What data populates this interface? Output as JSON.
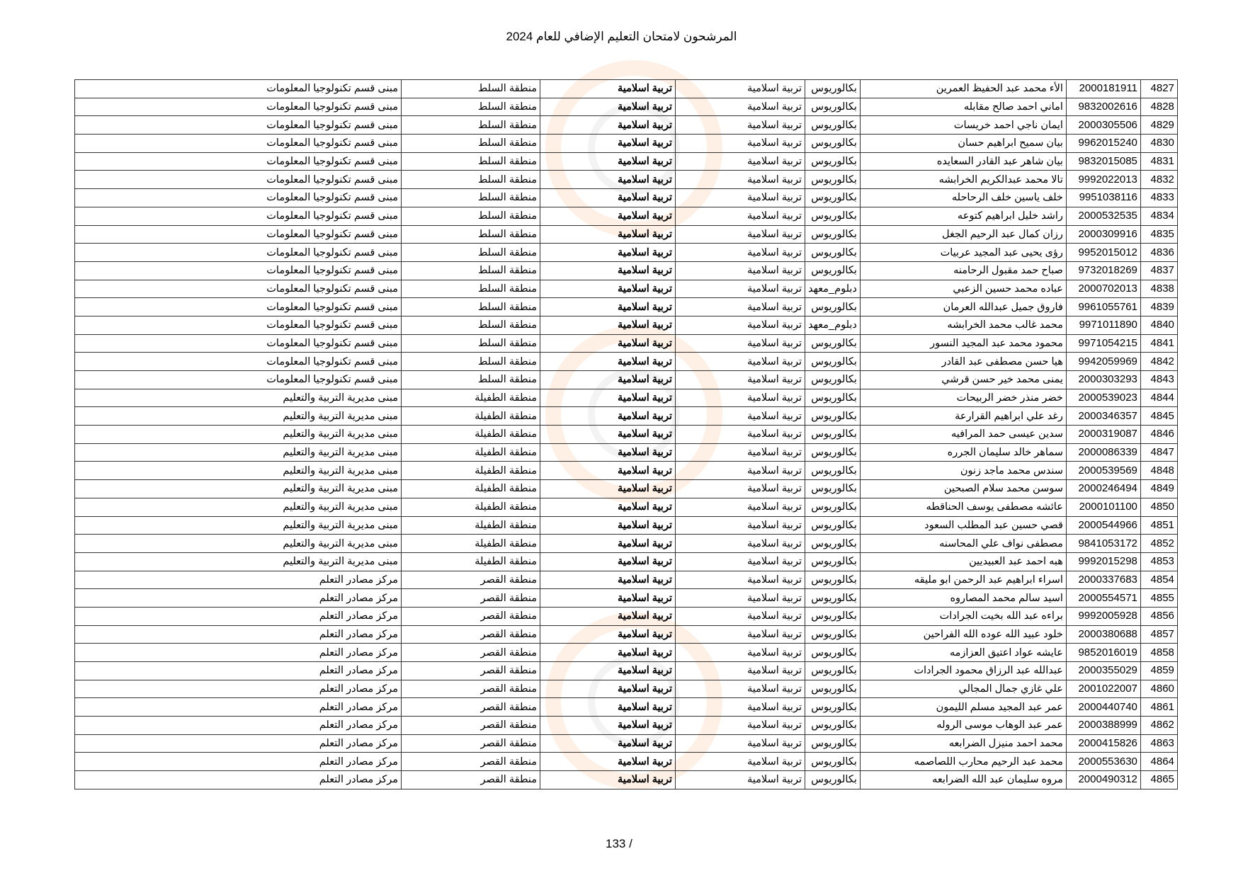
{
  "header": {
    "title": "المرشحون لامتحان التعليم الإضافي للعام 2024"
  },
  "footer": {
    "page_number": "133 /"
  },
  "watermark": {
    "colors": {
      "ring": "#faaa6e",
      "logo": "#a0a0a0"
    }
  },
  "table": {
    "rows": [
      {
        "seq": "4827",
        "id": "2000181911",
        "name": "الأء محمد عبد الحفيظ العمرين",
        "degree": "بكالوريوس",
        "specialization": "تربية اسلامية",
        "subject": "تربية اسلامية",
        "region": "منطقة السلط",
        "center": "مبنى قسم تكنولوجيا المعلومات"
      },
      {
        "seq": "4828",
        "id": "9832002616",
        "name": "اماني احمد صالح مقابله",
        "degree": "بكالوريوس",
        "specialization": "تربية اسلامية",
        "subject": "تربية اسلامية",
        "region": "منطقة السلط",
        "center": "مبنى قسم تكنولوجيا المعلومات"
      },
      {
        "seq": "4829",
        "id": "2000305506",
        "name": "ايمان ناجي احمد خريسات",
        "degree": "بكالوريوس",
        "specialization": "تربية اسلامية",
        "subject": "تربية اسلامية",
        "region": "منطقة السلط",
        "center": "مبنى قسم تكنولوجيا المعلومات"
      },
      {
        "seq": "4830",
        "id": "9962015240",
        "name": "بيان سميح ابراهيم حسان",
        "degree": "بكالوريوس",
        "specialization": "تربية اسلامية",
        "subject": "تربية اسلامية",
        "region": "منطقة السلط",
        "center": "مبنى قسم تكنولوجيا المعلومات"
      },
      {
        "seq": "4831",
        "id": "9832015085",
        "name": "بيان شاهر عبد القادر السعايده",
        "degree": "بكالوريوس",
        "specialization": "تربية اسلامية",
        "subject": "تربية اسلامية",
        "region": "منطقة السلط",
        "center": "مبنى قسم تكنولوجيا المعلومات"
      },
      {
        "seq": "4832",
        "id": "9992022013",
        "name": "تالا محمد عبدالكريم الخرابشه",
        "degree": "بكالوريوس",
        "specialization": "تربية اسلامية",
        "subject": "تربية اسلامية",
        "region": "منطقة السلط",
        "center": "مبنى قسم تكنولوجيا المعلومات"
      },
      {
        "seq": "4833",
        "id": "9951038116",
        "name": "خلف ياسين خلف الرحاحله",
        "degree": "بكالوريوس",
        "specialization": "تربية اسلامية",
        "subject": "تربية اسلامية",
        "region": "منطقة السلط",
        "center": "مبنى قسم تكنولوجيا المعلومات"
      },
      {
        "seq": "4834",
        "id": "2000532535",
        "name": "راشد خليل ابراهيم كتوعه",
        "degree": "بكالوريوس",
        "specialization": "تربية اسلامية",
        "subject": "تربية اسلامية",
        "region": "منطقة السلط",
        "center": "مبنى قسم تكنولوجيا المعلومات"
      },
      {
        "seq": "4835",
        "id": "2000309916",
        "name": "رزان كمال عبد الرحيم الجغل",
        "degree": "بكالوريوس",
        "specialization": "تربية اسلامية",
        "subject": "تربية اسلامية",
        "region": "منطقة السلط",
        "center": "مبنى قسم تكنولوجيا المعلومات"
      },
      {
        "seq": "4836",
        "id": "9952015012",
        "name": "رؤى يحيى عبد المجيد عربيات",
        "degree": "بكالوريوس",
        "specialization": "تربية اسلامية",
        "subject": "تربية اسلامية",
        "region": "منطقة السلط",
        "center": "مبنى قسم تكنولوجيا المعلومات"
      },
      {
        "seq": "4837",
        "id": "9732018269",
        "name": "صباح حمد مقبول الرحامنه",
        "degree": "بكالوريوس",
        "specialization": "تربية اسلامية",
        "subject": "تربية اسلامية",
        "region": "منطقة السلط",
        "center": "مبنى قسم تكنولوجيا المعلومات"
      },
      {
        "seq": "4838",
        "id": "2000702013",
        "name": "عباده محمد حسين الزعبي",
        "degree": "دبلوم_معهد",
        "specialization": "تربية اسلامية",
        "subject": "تربية اسلامية",
        "region": "منطقة السلط",
        "center": "مبنى قسم تكنولوجيا المعلومات"
      },
      {
        "seq": "4839",
        "id": "9961055761",
        "name": "فاروق جميل عبدالله العرمان",
        "degree": "بكالوريوس",
        "specialization": "تربية اسلامية",
        "subject": "تربية اسلامية",
        "region": "منطقة السلط",
        "center": "مبنى قسم تكنولوجيا المعلومات"
      },
      {
        "seq": "4840",
        "id": "9971011890",
        "name": "محمد غالب محمد الخرابشه",
        "degree": "دبلوم_معهد",
        "specialization": "تربية اسلامية",
        "subject": "تربية اسلامية",
        "region": "منطقة السلط",
        "center": "مبنى قسم تكنولوجيا المعلومات"
      },
      {
        "seq": "4841",
        "id": "9971054215",
        "name": "محمود محمد عبد المجيد النسور",
        "degree": "بكالوريوس",
        "specialization": "تربية اسلامية",
        "subject": "تربية اسلامية",
        "region": "منطقة السلط",
        "center": "مبنى قسم تكنولوجيا المعلومات"
      },
      {
        "seq": "4842",
        "id": "9942059969",
        "name": "هيا حسن مصطفى عبد القادر",
        "degree": "بكالوريوس",
        "specialization": "تربية اسلامية",
        "subject": "تربية اسلامية",
        "region": "منطقة السلط",
        "center": "مبنى قسم تكنولوجيا المعلومات"
      },
      {
        "seq": "4843",
        "id": "2000303293",
        "name": "يمنى محمد خير حسن قرشي",
        "degree": "بكالوريوس",
        "specialization": "تربية اسلامية",
        "subject": "تربية اسلامية",
        "region": "منطقة السلط",
        "center": "مبنى قسم تكنولوجيا المعلومات"
      },
      {
        "seq": "4844",
        "id": "2000539023",
        "name": "خضر منذر خضر الربيحات",
        "degree": "بكالوريوس",
        "specialization": "تربية اسلامية",
        "subject": "تربية اسلامية",
        "region": "منطقة الطفيلة",
        "center": "مبنى مديرية التربية والتعليم"
      },
      {
        "seq": "4845",
        "id": "2000346357",
        "name": "رغد علي ابراهيم القرارعة",
        "degree": "بكالوريوس",
        "specialization": "تربية اسلامية",
        "subject": "تربية اسلامية",
        "region": "منطقة الطفيلة",
        "center": "مبنى مديرية التربية والتعليم"
      },
      {
        "seq": "4846",
        "id": "2000319087",
        "name": "سدين عيسى حمد المرافيه",
        "degree": "بكالوريوس",
        "specialization": "تربية اسلامية",
        "subject": "تربية اسلامية",
        "region": "منطقة الطفيلة",
        "center": "مبنى مديرية التربية والتعليم"
      },
      {
        "seq": "4847",
        "id": "2000086339",
        "name": "سماهر خالد سليمان الجرره",
        "degree": "بكالوريوس",
        "specialization": "تربية اسلامية",
        "subject": "تربية اسلامية",
        "region": "منطقة الطفيلة",
        "center": "مبنى مديرية التربية والتعليم"
      },
      {
        "seq": "4848",
        "id": "2000539569",
        "name": "سندس محمد ماجد زنون",
        "degree": "بكالوريوس",
        "specialization": "تربية اسلامية",
        "subject": "تربية اسلامية",
        "region": "منطقة الطفيلة",
        "center": "مبنى مديرية التربية والتعليم"
      },
      {
        "seq": "4849",
        "id": "2000246494",
        "name": "سوسن محمد سلام الصبحين",
        "degree": "بكالوريوس",
        "specialization": "تربية اسلامية",
        "subject": "تربية اسلامية",
        "region": "منطقة الطفيلة",
        "center": "مبنى مديرية التربية والتعليم"
      },
      {
        "seq": "4850",
        "id": "2000101100",
        "name": "عائشه مصطفى يوسف الحناقطه",
        "degree": "بكالوريوس",
        "specialization": "تربية اسلامية",
        "subject": "تربية اسلامية",
        "region": "منطقة الطفيلة",
        "center": "مبنى مديرية التربية والتعليم"
      },
      {
        "seq": "4851",
        "id": "2000544966",
        "name": "قصي حسين عبد المطلب السعود",
        "degree": "بكالوريوس",
        "specialization": "تربية اسلامية",
        "subject": "تربية اسلامية",
        "region": "منطقة الطفيلة",
        "center": "مبنى مديرية التربية والتعليم"
      },
      {
        "seq": "4852",
        "id": "9841053172",
        "name": "مصطفى نواف علي المحاسنه",
        "degree": "بكالوريوس",
        "specialization": "تربية اسلامية",
        "subject": "تربية اسلامية",
        "region": "منطقة الطفيلة",
        "center": "مبنى مديرية التربية والتعليم"
      },
      {
        "seq": "4853",
        "id": "9992015298",
        "name": "هبه احمد عبد العبيديين",
        "degree": "بكالوريوس",
        "specialization": "تربية اسلامية",
        "subject": "تربية اسلامية",
        "region": "منطقة الطفيلة",
        "center": "مبنى مديرية التربية والتعليم"
      },
      {
        "seq": "4854",
        "id": "2000337683",
        "name": "اسراء ابراهيم عبد الرحمن ابو مليقه",
        "degree": "بكالوريوس",
        "specialization": "تربية اسلامية",
        "subject": "تربية اسلامية",
        "region": "منطقة القصر",
        "center": "مركز مصادر التعلم"
      },
      {
        "seq": "4855",
        "id": "2000554571",
        "name": "اسيد سالم محمد المصاروه",
        "degree": "بكالوريوس",
        "specialization": "تربية اسلامية",
        "subject": "تربية اسلامية",
        "region": "منطقة القصر",
        "center": "مركز مصادر التعلم"
      },
      {
        "seq": "4856",
        "id": "9992005928",
        "name": "براءه عبد الله بخيت الجرادات",
        "degree": "بكالوريوس",
        "specialization": "تربية اسلامية",
        "subject": "تربية اسلامية",
        "region": "منطقة القصر",
        "center": "مركز مصادر التعلم"
      },
      {
        "seq": "4857",
        "id": "2000380688",
        "name": "خلود عبيد الله عوده الله الفراحين",
        "degree": "بكالوريوس",
        "specialization": "تربية اسلامية",
        "subject": "تربية اسلامية",
        "region": "منطقة القصر",
        "center": "مركز مصادر التعلم"
      },
      {
        "seq": "4858",
        "id": "9852016019",
        "name": "عايشه عواد اعتيق العزازمه",
        "degree": "بكالوريوس",
        "specialization": "تربية اسلامية",
        "subject": "تربية اسلامية",
        "region": "منطقة القصر",
        "center": "مركز مصادر التعلم"
      },
      {
        "seq": "4859",
        "id": "2000355029",
        "name": "عبدالله عبد الرزاق محمود الجرادات",
        "degree": "بكالوريوس",
        "specialization": "تربية اسلامية",
        "subject": "تربية اسلامية",
        "region": "منطقة القصر",
        "center": "مركز مصادر التعلم"
      },
      {
        "seq": "4860",
        "id": "2001022007",
        "name": "علي غازي جمال المجالي",
        "degree": "بكالوريوس",
        "specialization": "تربية اسلامية",
        "subject": "تربية اسلامية",
        "region": "منطقة القصر",
        "center": "مركز مصادر التعلم"
      },
      {
        "seq": "4861",
        "id": "2000440740",
        "name": "عمر عبد المجيد مسلم الليمون",
        "degree": "بكالوريوس",
        "specialization": "تربية اسلامية",
        "subject": "تربية اسلامية",
        "region": "منطقة القصر",
        "center": "مركز مصادر التعلم"
      },
      {
        "seq": "4862",
        "id": "2000388999",
        "name": "عمر عبد الوهاب موسى الروله",
        "degree": "بكالوريوس",
        "specialization": "تربية اسلامية",
        "subject": "تربية اسلامية",
        "region": "منطقة القصر",
        "center": "مركز مصادر التعلم"
      },
      {
        "seq": "4863",
        "id": "2000415826",
        "name": "محمد احمد منيزل الضرابعه",
        "degree": "بكالوريوس",
        "specialization": "تربية اسلامية",
        "subject": "تربية اسلامية",
        "region": "منطقة القصر",
        "center": "مركز مصادر التعلم"
      },
      {
        "seq": "4864",
        "id": "2000553630",
        "name": "محمد عبد الرحيم محارب اللصاصمه",
        "degree": "بكالوريوس",
        "specialization": "تربية اسلامية",
        "subject": "تربية اسلامية",
        "region": "منطقة القصر",
        "center": "مركز مصادر التعلم"
      },
      {
        "seq": "4865",
        "id": "2000490312",
        "name": "مروه سليمان عبد الله الضرابعه",
        "degree": "بكالوريوس",
        "specialization": "تربية اسلامية",
        "subject": "تربية اسلامية",
        "region": "منطقة القصر",
        "center": "مركز مصادر التعلم"
      }
    ]
  }
}
